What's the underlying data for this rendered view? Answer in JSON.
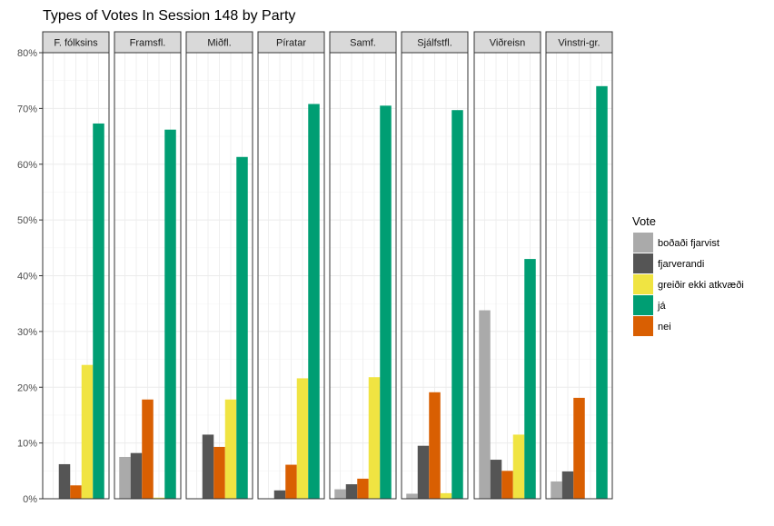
{
  "chart_data": {
    "type": "bar",
    "title": "Types of Votes In Session 148 by Party",
    "xlabel": "",
    "ylabel": "",
    "ylim": [
      0,
      0.8
    ],
    "y_ticks": [
      "0%",
      "10%",
      "20%",
      "30%",
      "40%",
      "50%",
      "60%",
      "70%",
      "80%"
    ],
    "grid": true,
    "legend_title": "Vote",
    "legend_position": "right",
    "categories": [
      "F. fólksins",
      "Framsfl.",
      "Miðfl.",
      "Píratar",
      "Samf.",
      "Sjálfstfl.",
      "Viðreisn",
      "Vinstri-gr."
    ],
    "series": [
      {
        "name": "boðaði fjarvist",
        "color": "#aaaaaa",
        "values": [
          0.0,
          0.075,
          0.0,
          0.0,
          0.017,
          0.009,
          0.338,
          0.031
        ]
      },
      {
        "name": "fjarverandi",
        "color": "#555555",
        "values": [
          0.062,
          0.082,
          0.115,
          0.015,
          0.026,
          0.095,
          0.07,
          0.049
        ]
      },
      {
        "name": "nei",
        "color": "#d95f02",
        "values": [
          0.024,
          0.178,
          0.093,
          0.061,
          0.036,
          0.191,
          0.05,
          0.181
        ]
      },
      {
        "name": "greiðir ekki atkvæði",
        "color": "#f0e442",
        "values": [
          0.24,
          0.002,
          0.178,
          0.216,
          0.218,
          0.01,
          0.115,
          0.0
        ]
      },
      {
        "name": "já",
        "color": "#009e73",
        "values": [
          0.673,
          0.662,
          0.613,
          0.708,
          0.705,
          0.697,
          0.43,
          0.74
        ]
      }
    ],
    "legend_order": [
      "boðaði fjarvist",
      "fjarverandi",
      "greiðir ekki atkvæði",
      "já",
      "nei"
    ]
  }
}
